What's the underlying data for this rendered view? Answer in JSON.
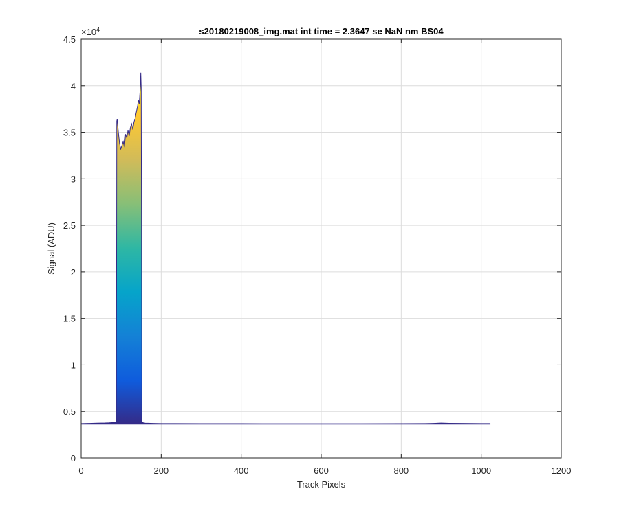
{
  "chart_data": {
    "type": "area",
    "title": "s20180219008_img.mat int time = 2.3647 se  NaN nm BS04",
    "xlabel": "Track Pixels",
    "ylabel": "Signal (ADU)",
    "xlim": [
      0,
      1200
    ],
    "ylim": [
      0,
      45000
    ],
    "x_ticks": [
      0,
      200,
      400,
      600,
      800,
      1000,
      1200
    ],
    "x_tick_labels": [
      "0",
      "200",
      "400",
      "600",
      "800",
      "1000",
      "1200"
    ],
    "y_ticks": [
      0,
      5000,
      10000,
      15000,
      20000,
      25000,
      30000,
      35000,
      40000,
      45000
    ],
    "y_tick_labels": [
      "0",
      "0.5",
      "1",
      "1.5",
      "2",
      "2.5",
      "3",
      "3.5",
      "4",
      "4.5"
    ],
    "y_exponent_label": "×10",
    "y_exponent_power": "4",
    "grid": true,
    "colormap": [
      "#352a87",
      "#0f5cdd",
      "#1481d6",
      "#06a4ca",
      "#2eb7a4",
      "#87bf77",
      "#d1bb59",
      "#fec832",
      "#f9fb0e"
    ],
    "x": [
      0,
      20,
      40,
      60,
      70,
      80,
      85,
      88,
      89,
      90,
      93,
      96,
      99,
      102,
      105,
      108,
      111,
      114,
      117,
      120,
      123,
      126,
      129,
      132,
      135,
      137,
      139,
      141,
      143,
      145,
      147,
      148,
      149,
      150,
      152,
      155,
      160,
      180,
      200,
      300,
      400,
      500,
      600,
      700,
      800,
      860,
      880,
      900,
      920,
      950,
      1000,
      1023
    ],
    "y": [
      3700,
      3720,
      3740,
      3760,
      3780,
      3810,
      3850,
      3900,
      36200,
      36400,
      35000,
      33800,
      33200,
      33600,
      34000,
      33400,
      34800,
      34400,
      35200,
      34600,
      35500,
      35900,
      35300,
      36100,
      36500,
      37000,
      37400,
      37800,
      38500,
      38000,
      39300,
      40000,
      41400,
      39800,
      3900,
      3780,
      3740,
      3720,
      3700,
      3690,
      3685,
      3680,
      3680,
      3680,
      3690,
      3700,
      3720,
      3750,
      3730,
      3720,
      3700,
      3700
    ]
  }
}
